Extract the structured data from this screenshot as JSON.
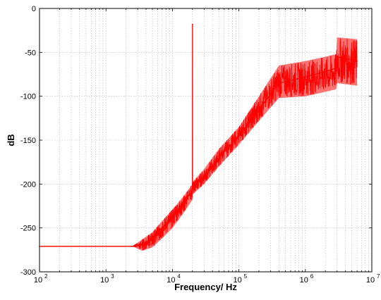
{
  "chart_data": {
    "type": "line",
    "xscale": "log",
    "xlim": [
      100,
      10000000
    ],
    "ylim": [
      -300,
      0
    ],
    "xlabel": "Frequency/ Hz",
    "ylabel": "dB",
    "grid": true,
    "x_tick_labels": [
      {
        "value": 100,
        "base": "10",
        "exp": "2"
      },
      {
        "value": 1000,
        "base": "10",
        "exp": "3"
      },
      {
        "value": 10000,
        "base": "10",
        "exp": "4"
      },
      {
        "value": 100000,
        "base": "10",
        "exp": "5"
      },
      {
        "value": 1000000,
        "base": "10",
        "exp": "6"
      },
      {
        "value": 10000000,
        "base": "10",
        "exp": "7"
      }
    ],
    "y_ticks": [
      0,
      -50,
      -100,
      -150,
      -200,
      -250,
      -300
    ],
    "colors": {
      "line": "#ff0000",
      "grid": "#b8b8b8"
    },
    "series": [
      {
        "x": [
          100,
          2500,
          3500,
          5000,
          7000,
          10000,
          15000,
          19990,
          20000,
          20010,
          30000,
          50000,
          100000,
          200000,
          400000,
          1000000,
          2000000,
          2900000,
          3000000,
          6000000
        ],
        "y": [
          -271,
          -271,
          -268,
          -262,
          -250,
          -237,
          -220,
          -208,
          -18,
          -205,
          -192,
          -170,
          -145,
          -115,
          -85,
          -78,
          -72,
          -68,
          -55,
          -60
        ],
        "band_low": [
          -271,
          -271,
          -276,
          -272,
          -262,
          -250,
          -232,
          -218,
          -210,
          -212,
          -200,
          -180,
          -155,
          -128,
          -102,
          -100,
          -95,
          -92,
          -85,
          -88
        ],
        "band_high": [
          -271,
          -271,
          -263,
          -255,
          -242,
          -229,
          -213,
          -200,
          -18,
          -198,
          -183,
          -160,
          -135,
          -100,
          -65,
          -60,
          -55,
          -52,
          -33,
          -35
        ]
      }
    ]
  }
}
